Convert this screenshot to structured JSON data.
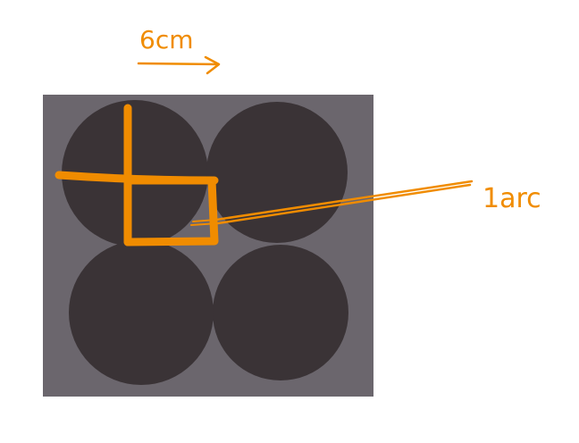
{
  "annotations": {
    "width_label": "6cm",
    "arc_label": "1arc"
  },
  "colors": {
    "background_square": "#6b666d",
    "circle": "#3a3336",
    "marker": "#f08c00",
    "page": "#ffffff"
  }
}
